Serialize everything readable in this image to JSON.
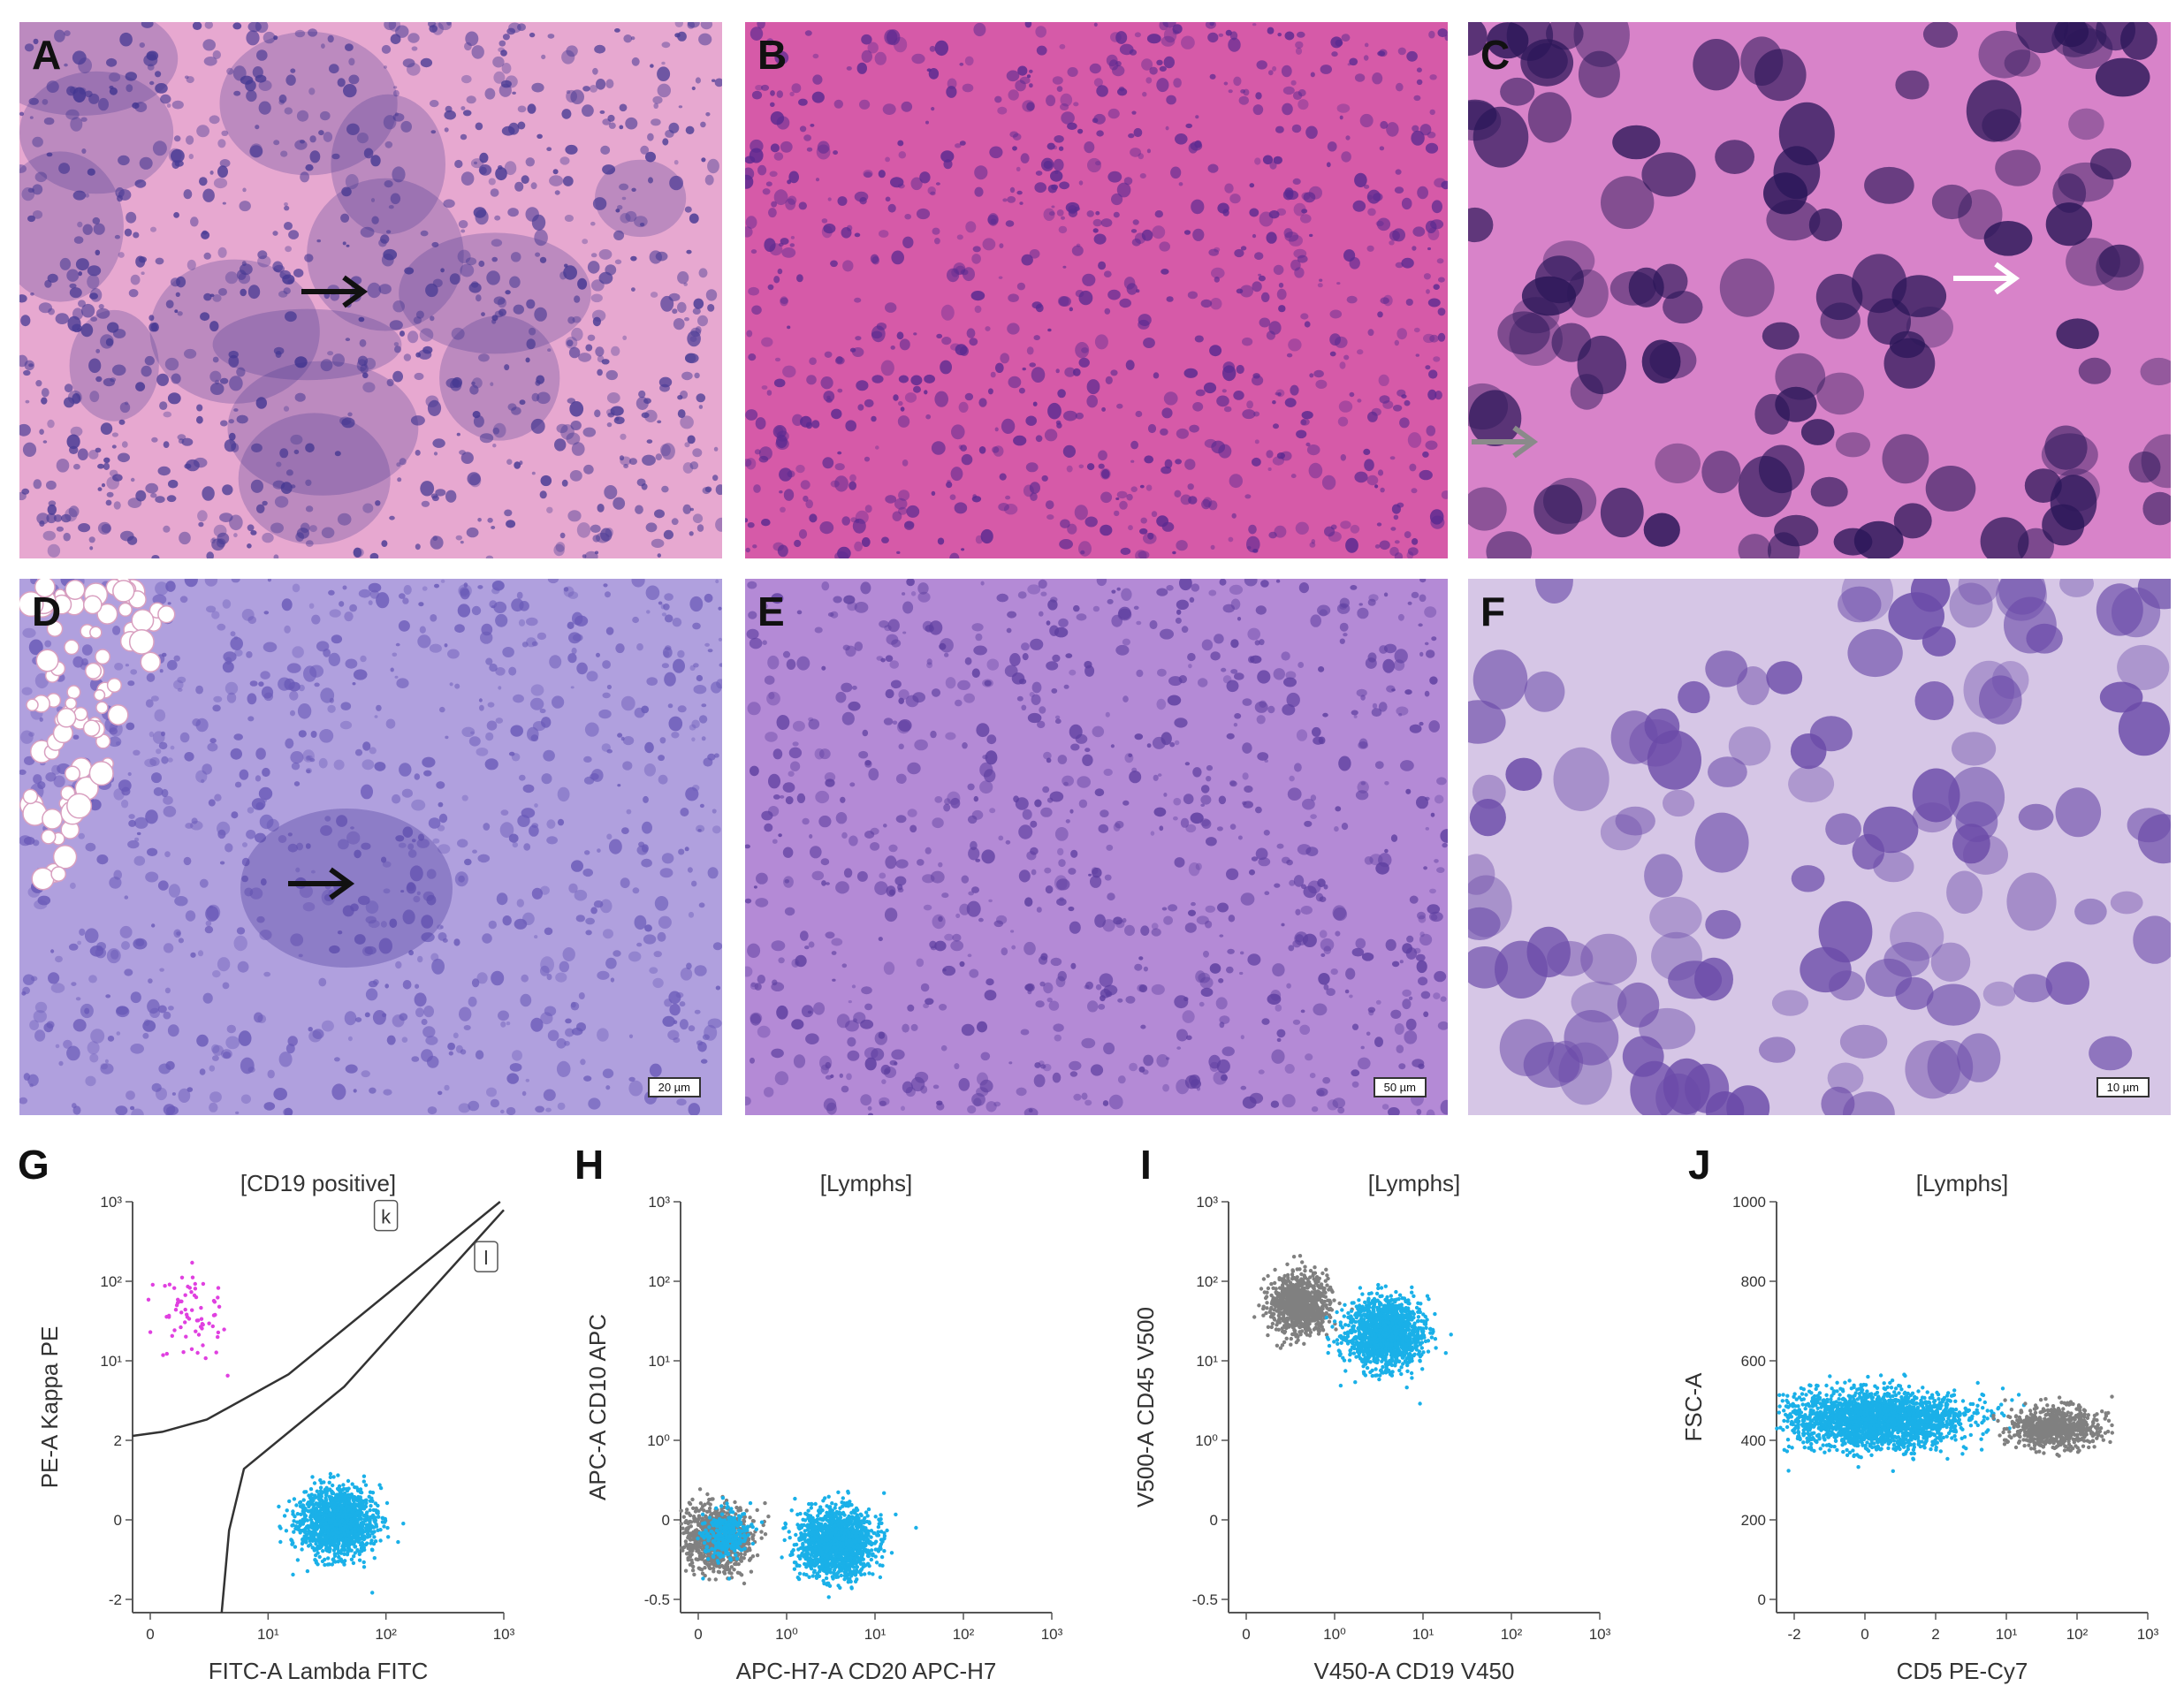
{
  "figure": {
    "histology_panels": [
      {
        "id": "A",
        "label": "A",
        "base": "#e7a8d0",
        "blobs": "#4a3c95",
        "scale_bar": ""
      },
      {
        "id": "B",
        "label": "B",
        "base": "#d65aa8",
        "blobs": "#5a2a90",
        "scale_bar": ""
      },
      {
        "id": "C",
        "label": "C",
        "base": "#d883c9",
        "blobs": "#2a1658",
        "scale_bar": ""
      },
      {
        "id": "D",
        "label": "D",
        "base": "#b0a0de",
        "blobs": "#6a5ab8",
        "scale_bar": "20 µm"
      },
      {
        "id": "E",
        "label": "E",
        "base": "#b48ad6",
        "blobs": "#5e3fa0",
        "scale_bar": "50 µm"
      },
      {
        "id": "F",
        "label": "F",
        "base": "#d6c6e6",
        "blobs": "#6a4aa8",
        "scale_bar": "10 µm"
      }
    ],
    "flow_panels": [
      {
        "id": "G",
        "label": "G",
        "title": "[CD19 positive]",
        "xlabel": "FITC-A Lambda FITC",
        "ylabel": "PE-A Kappa PE",
        "xticks": [
          "0",
          "10¹",
          "10²",
          "10³"
        ],
        "yticks": [
          "-2",
          "0",
          "2",
          "10¹",
          "10²",
          "10³"
        ],
        "gate_labels": [
          "k",
          "l"
        ]
      },
      {
        "id": "H",
        "label": "H",
        "title": "[Lymphs]",
        "xlabel": "APC-H7-A CD20 APC-H7",
        "ylabel": "APC-A CD10 APC",
        "xticks": [
          "0",
          "10⁰",
          "10¹",
          "10²",
          "10³"
        ],
        "yticks": [
          "-0.5",
          "0",
          "10⁰",
          "10¹",
          "10²",
          "10³"
        ],
        "gate_labels": []
      },
      {
        "id": "I",
        "label": "I",
        "title": "[Lymphs]",
        "xlabel": "V450-A CD19 V450",
        "ylabel": "V500-A CD45 V500",
        "xticks": [
          "0",
          "10⁰",
          "10¹",
          "10²",
          "10³"
        ],
        "yticks": [
          "-0.5",
          "0",
          "10⁰",
          "10¹",
          "10²",
          "10³"
        ],
        "gate_labels": []
      },
      {
        "id": "J",
        "label": "J",
        "title": "[Lymphs]",
        "xlabel": "CD5 PE-Cy7",
        "ylabel": "FSC-A",
        "xticks": [
          "-2",
          "0",
          "2",
          "10¹",
          "10²",
          "10³"
        ],
        "yticks": [
          "0",
          "200",
          "400",
          "600",
          "800",
          "1000"
        ],
        "gate_labels": []
      }
    ],
    "colors": {
      "cd19_population": "#1ab0e8",
      "other_population": "#808080",
      "kappa_population": "#e040e0"
    }
  }
}
